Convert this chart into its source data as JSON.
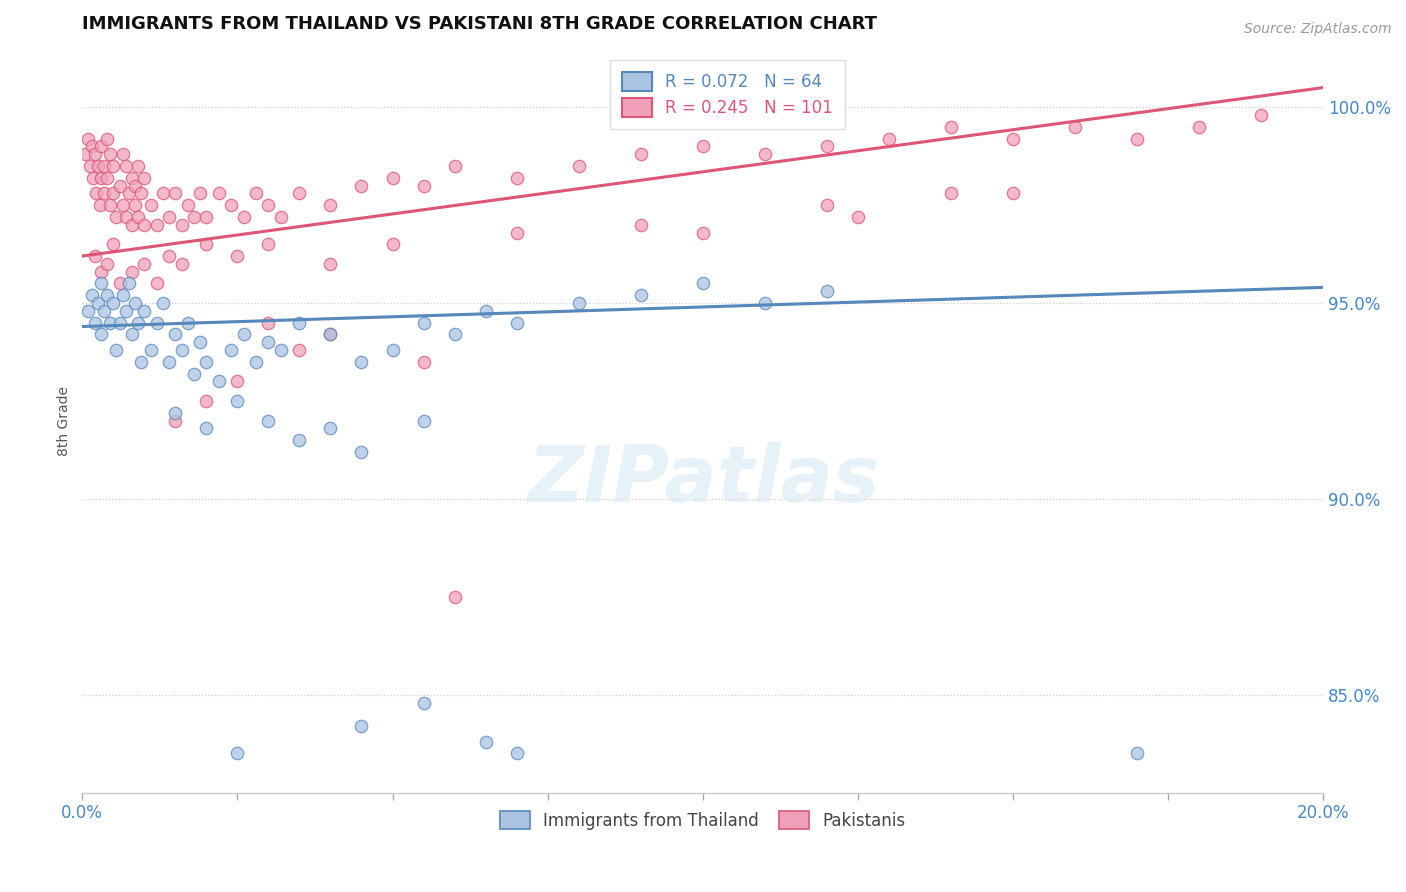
{
  "title": "IMMIGRANTS FROM THAILAND VS PAKISTANI 8TH GRADE CORRELATION CHART",
  "source_text": "Source: ZipAtlas.com",
  "ylabel": "8th Grade",
  "watermark": "ZIPatlas",
  "legend_blue_label": "Immigrants from Thailand",
  "legend_pink_label": "Pakistanis",
  "R_blue": 0.072,
  "N_blue": 64,
  "R_pink": 0.245,
  "N_pink": 101,
  "xlim": [
    0.0,
    20.0
  ],
  "ylim": [
    82.5,
    101.5
  ],
  "yticks": [
    85.0,
    90.0,
    95.0,
    100.0
  ],
  "xticks": [
    0.0,
    2.5,
    5.0,
    7.5,
    10.0,
    12.5,
    15.0,
    17.5,
    20.0
  ],
  "blue_color": "#aac4e2",
  "pink_color": "#f0a0b8",
  "blue_line_color": "#5588bb",
  "pink_line_color": "#dd5577",
  "tick_label_color": "#4488cc",
  "blue_scatter": [
    [
      0.1,
      94.8
    ],
    [
      0.15,
      95.2
    ],
    [
      0.2,
      94.5
    ],
    [
      0.25,
      95.0
    ],
    [
      0.3,
      94.2
    ],
    [
      0.3,
      95.5
    ],
    [
      0.35,
      94.8
    ],
    [
      0.4,
      95.2
    ],
    [
      0.45,
      94.5
    ],
    [
      0.5,
      95.0
    ],
    [
      0.55,
      93.8
    ],
    [
      0.6,
      94.5
    ],
    [
      0.65,
      95.2
    ],
    [
      0.7,
      94.8
    ],
    [
      0.75,
      95.5
    ],
    [
      0.8,
      94.2
    ],
    [
      0.85,
      95.0
    ],
    [
      0.9,
      94.5
    ],
    [
      0.95,
      93.5
    ],
    [
      1.0,
      94.8
    ],
    [
      1.1,
      93.8
    ],
    [
      1.2,
      94.5
    ],
    [
      1.3,
      95.0
    ],
    [
      1.4,
      93.5
    ],
    [
      1.5,
      94.2
    ],
    [
      1.6,
      93.8
    ],
    [
      1.7,
      94.5
    ],
    [
      1.8,
      93.2
    ],
    [
      1.9,
      94.0
    ],
    [
      2.0,
      93.5
    ],
    [
      2.2,
      93.0
    ],
    [
      2.4,
      93.8
    ],
    [
      2.6,
      94.2
    ],
    [
      2.8,
      93.5
    ],
    [
      3.0,
      94.0
    ],
    [
      3.2,
      93.8
    ],
    [
      3.5,
      94.5
    ],
    [
      4.0,
      94.2
    ],
    [
      4.5,
      93.5
    ],
    [
      5.0,
      93.8
    ],
    [
      5.5,
      94.5
    ],
    [
      6.0,
      94.2
    ],
    [
      6.5,
      94.8
    ],
    [
      7.0,
      94.5
    ],
    [
      8.0,
      95.0
    ],
    [
      9.0,
      95.2
    ],
    [
      10.0,
      95.5
    ],
    [
      11.0,
      95.0
    ],
    [
      12.0,
      95.3
    ],
    [
      1.5,
      92.2
    ],
    [
      2.0,
      91.8
    ],
    [
      2.5,
      92.5
    ],
    [
      3.0,
      92.0
    ],
    [
      3.5,
      91.5
    ],
    [
      4.0,
      91.8
    ],
    [
      4.5,
      91.2
    ],
    [
      5.5,
      92.0
    ],
    [
      2.5,
      83.5
    ],
    [
      4.5,
      84.2
    ],
    [
      5.5,
      84.8
    ],
    [
      6.5,
      83.8
    ],
    [
      7.0,
      83.5
    ],
    [
      17.0,
      83.5
    ]
  ],
  "pink_scatter": [
    [
      0.05,
      98.8
    ],
    [
      0.1,
      99.2
    ],
    [
      0.12,
      98.5
    ],
    [
      0.15,
      99.0
    ],
    [
      0.18,
      98.2
    ],
    [
      0.2,
      98.8
    ],
    [
      0.22,
      97.8
    ],
    [
      0.25,
      98.5
    ],
    [
      0.28,
      97.5
    ],
    [
      0.3,
      98.2
    ],
    [
      0.3,
      99.0
    ],
    [
      0.35,
      98.5
    ],
    [
      0.35,
      97.8
    ],
    [
      0.4,
      98.2
    ],
    [
      0.4,
      99.2
    ],
    [
      0.45,
      97.5
    ],
    [
      0.45,
      98.8
    ],
    [
      0.5,
      97.8
    ],
    [
      0.5,
      98.5
    ],
    [
      0.55,
      97.2
    ],
    [
      0.6,
      98.0
    ],
    [
      0.65,
      97.5
    ],
    [
      0.65,
      98.8
    ],
    [
      0.7,
      97.2
    ],
    [
      0.7,
      98.5
    ],
    [
      0.75,
      97.8
    ],
    [
      0.8,
      97.0
    ],
    [
      0.8,
      98.2
    ],
    [
      0.85,
      97.5
    ],
    [
      0.85,
      98.0
    ],
    [
      0.9,
      97.2
    ],
    [
      0.9,
      98.5
    ],
    [
      0.95,
      97.8
    ],
    [
      1.0,
      97.0
    ],
    [
      1.0,
      98.2
    ],
    [
      1.1,
      97.5
    ],
    [
      1.2,
      97.0
    ],
    [
      1.3,
      97.8
    ],
    [
      1.4,
      97.2
    ],
    [
      1.5,
      97.8
    ],
    [
      1.6,
      97.0
    ],
    [
      1.7,
      97.5
    ],
    [
      1.8,
      97.2
    ],
    [
      1.9,
      97.8
    ],
    [
      2.0,
      97.2
    ],
    [
      2.2,
      97.8
    ],
    [
      2.4,
      97.5
    ],
    [
      2.6,
      97.2
    ],
    [
      2.8,
      97.8
    ],
    [
      3.0,
      97.5
    ],
    [
      3.2,
      97.2
    ],
    [
      3.5,
      97.8
    ],
    [
      4.0,
      97.5
    ],
    [
      4.5,
      98.0
    ],
    [
      5.0,
      98.2
    ],
    [
      5.5,
      98.0
    ],
    [
      6.0,
      98.5
    ],
    [
      7.0,
      98.2
    ],
    [
      8.0,
      98.5
    ],
    [
      9.0,
      98.8
    ],
    [
      10.0,
      99.0
    ],
    [
      11.0,
      98.8
    ],
    [
      12.0,
      99.0
    ],
    [
      13.0,
      99.2
    ],
    [
      14.0,
      99.5
    ],
    [
      15.0,
      99.2
    ],
    [
      16.0,
      99.5
    ],
    [
      17.0,
      99.2
    ],
    [
      18.0,
      99.5
    ],
    [
      19.0,
      99.8
    ],
    [
      3.0,
      94.5
    ],
    [
      3.5,
      93.8
    ],
    [
      4.0,
      94.2
    ],
    [
      5.5,
      93.5
    ],
    [
      1.5,
      92.0
    ],
    [
      2.0,
      92.5
    ],
    [
      2.5,
      93.0
    ],
    [
      6.0,
      87.5
    ],
    [
      0.2,
      96.2
    ],
    [
      0.3,
      95.8
    ],
    [
      0.4,
      96.0
    ],
    [
      0.5,
      96.5
    ],
    [
      0.6,
      95.5
    ],
    [
      0.8,
      95.8
    ],
    [
      1.0,
      96.0
    ],
    [
      1.2,
      95.5
    ],
    [
      1.4,
      96.2
    ],
    [
      1.6,
      96.0
    ],
    [
      2.0,
      96.5
    ],
    [
      2.5,
      96.2
    ],
    [
      3.0,
      96.5
    ],
    [
      4.0,
      96.0
    ],
    [
      5.0,
      96.5
    ],
    [
      7.0,
      96.8
    ],
    [
      9.0,
      97.0
    ],
    [
      12.0,
      97.5
    ],
    [
      15.0,
      97.8
    ],
    [
      10.0,
      96.8
    ],
    [
      12.5,
      97.2
    ],
    [
      14.0,
      97.8
    ]
  ],
  "blue_trend_x": [
    0.0,
    20.0
  ],
  "blue_trend_y": [
    94.4,
    95.4
  ],
  "pink_trend_x": [
    0.0,
    20.0
  ],
  "pink_trend_y": [
    96.2,
    100.5
  ]
}
